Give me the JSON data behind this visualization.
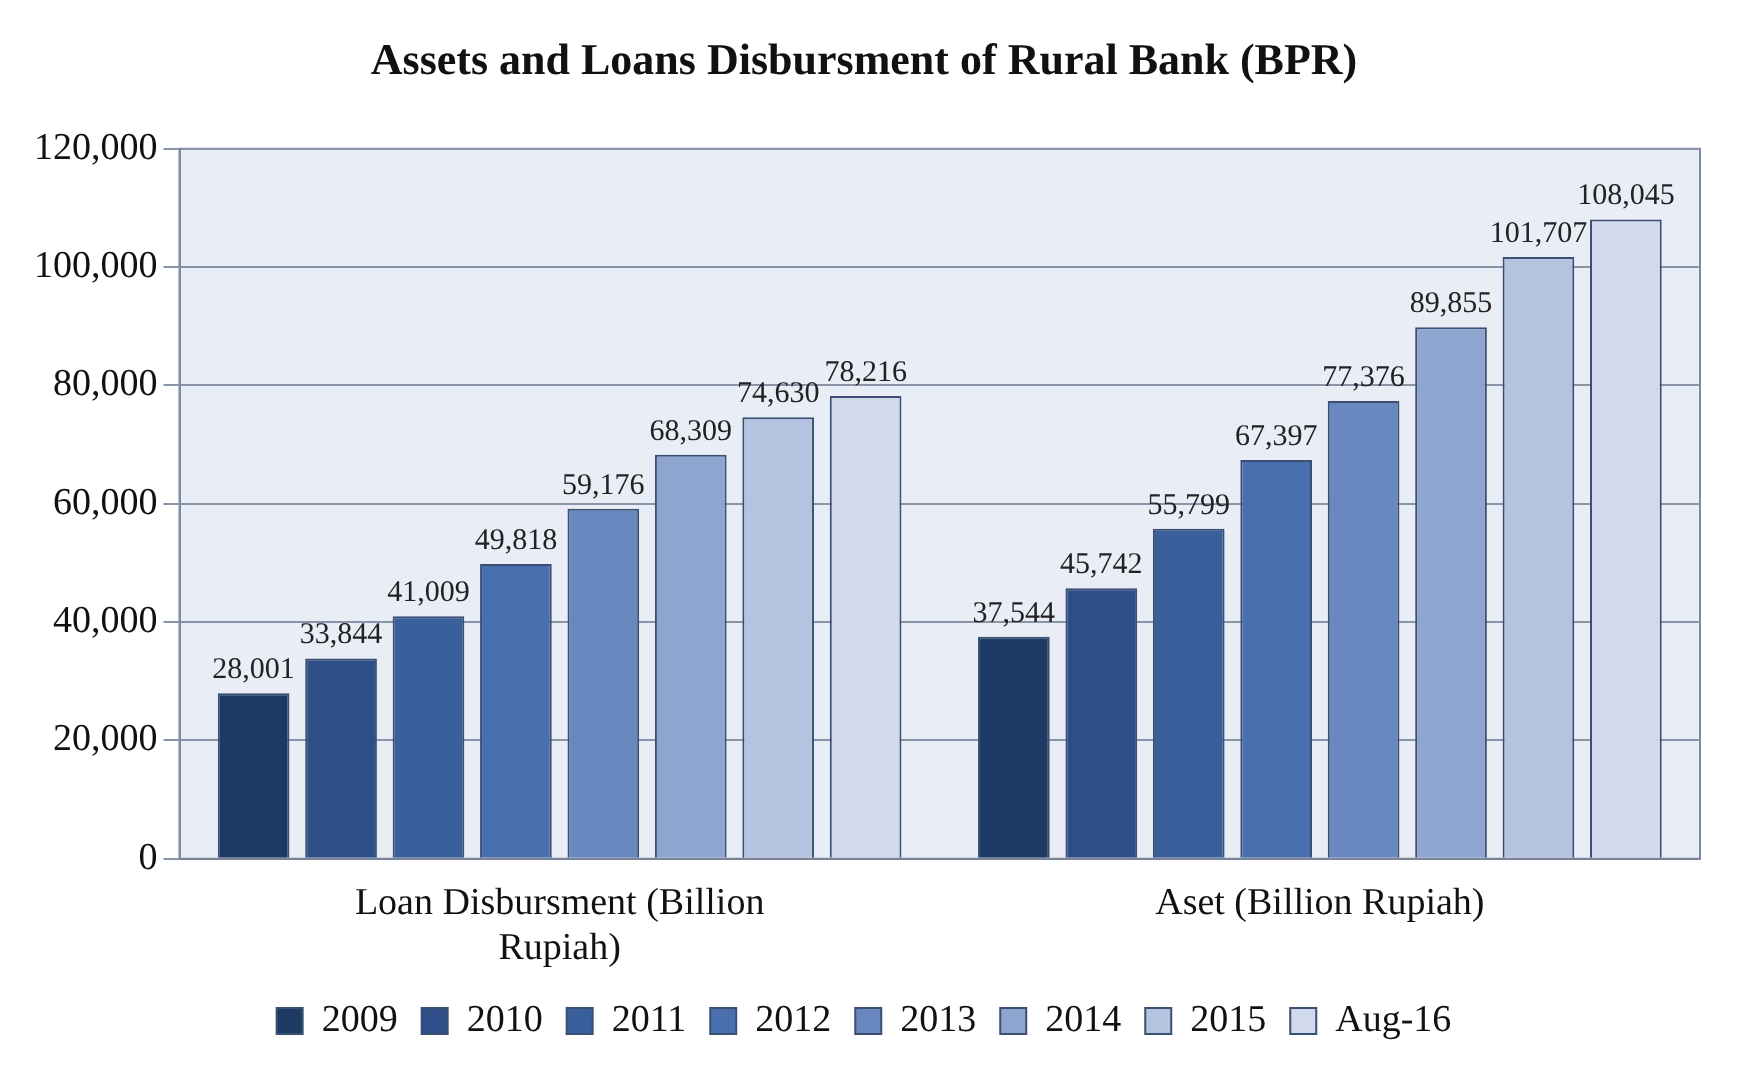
{
  "chart_data": {
    "type": "bar",
    "title": "Assets and Loans Disbursment of Rural Bank (BPR)",
    "categories": [
      "Loan Disbursment (Billion Rupiah)",
      "Aset (Billion Rupiah)"
    ],
    "series": [
      {
        "name": "2009",
        "color": "#1c3a64",
        "values": [
          28001,
          37544
        ],
        "value_labels": [
          "28,001",
          "37,544"
        ]
      },
      {
        "name": "2010",
        "color": "#2d4e86",
        "values": [
          33844,
          45742
        ],
        "value_labels": [
          "33,844",
          "45,742"
        ]
      },
      {
        "name": "2011",
        "color": "#3a609c",
        "values": [
          41009,
          55799
        ],
        "value_labels": [
          "41,009",
          "55,799"
        ]
      },
      {
        "name": "2012",
        "color": "#4a6fae",
        "values": [
          49818,
          67397
        ],
        "value_labels": [
          "49,818",
          "67,397"
        ]
      },
      {
        "name": "2013",
        "color": "#6a88c0",
        "values": [
          59176,
          77376
        ],
        "value_labels": [
          "59,176",
          "77,376"
        ]
      },
      {
        "name": "2014",
        "color": "#8ea5cf",
        "values": [
          68309,
          89855
        ],
        "value_labels": [
          "68,309",
          "89,855"
        ]
      },
      {
        "name": "2015",
        "color": "#b3c3e0",
        "values": [
          74630,
          101707
        ],
        "value_labels": [
          "74,630",
          "101,707"
        ]
      },
      {
        "name": "Aug-16",
        "color": "#d0daec",
        "values": [
          78216,
          108045
        ],
        "value_labels": [
          "78,216",
          "108,045"
        ]
      }
    ],
    "ylim": [
      0,
      120000
    ],
    "yticks": [
      0,
      {
        "value": 20000,
        "label": "20,000"
      },
      {
        "value": 40000,
        "label": "40,000"
      },
      {
        "value": 60000,
        "label": "60,000"
      },
      {
        "value": 80000,
        "label": "80,000"
      },
      {
        "value": 100000,
        "label": "100,000"
      },
      {
        "value": 120000,
        "label": "120,000"
      }
    ],
    "grid": "y",
    "legend": "bottom"
  }
}
